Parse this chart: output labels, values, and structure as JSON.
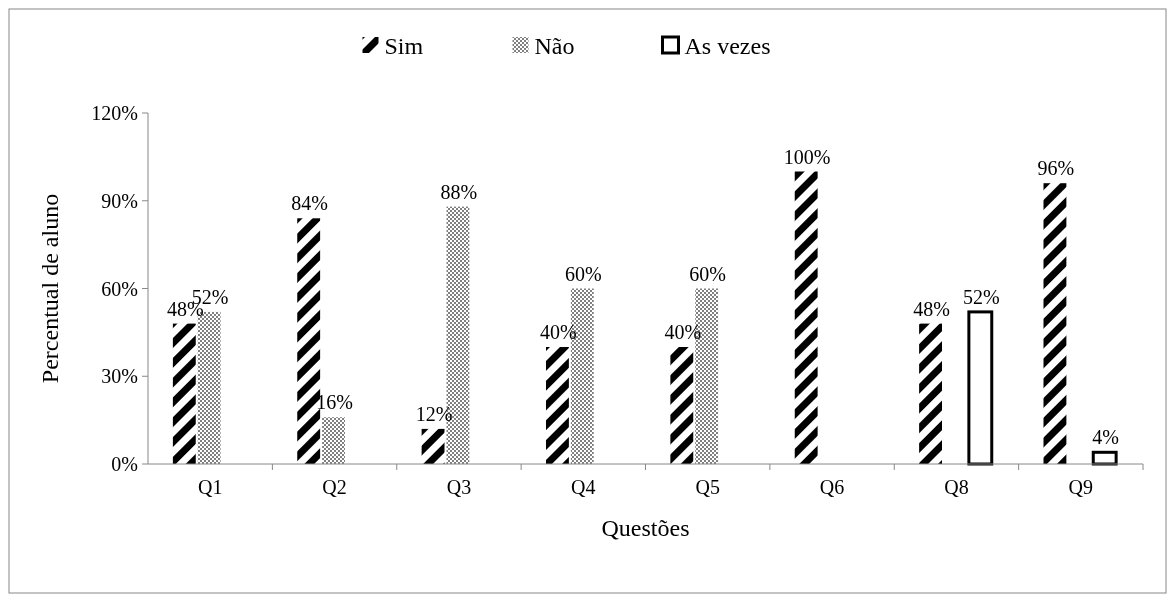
{
  "chart_data": {
    "type": "bar",
    "xlabel": "Questões",
    "ylabel": "Percentual de aluno",
    "categories": [
      "Q1",
      "Q2",
      "Q3",
      "Q4",
      "Q5",
      "Q6",
      "Q8",
      "Q9"
    ],
    "series": [
      {
        "name": "Sim",
        "color": "#000000",
        "values": [
          48,
          84,
          12,
          40,
          40,
          100,
          48,
          96
        ],
        "value_labels": [
          "48%",
          "84%",
          "12%",
          "40%",
          "40%",
          "100%",
          "48%",
          "96%"
        ]
      },
      {
        "name": "Não",
        "color": "#808080",
        "values": [
          52,
          16,
          88,
          60,
          60,
          null,
          null,
          null
        ],
        "value_labels": [
          "52%",
          "16%",
          "88%",
          "60%",
          "60%",
          null,
          null,
          null
        ]
      },
      {
        "name": "As vezes",
        "color": "#ffffff",
        "values": [
          null,
          null,
          null,
          null,
          null,
          null,
          52,
          4
        ],
        "value_labels": [
          null,
          null,
          null,
          null,
          null,
          null,
          "52%",
          "4%"
        ]
      }
    ],
    "ylim": [
      0,
      120
    ],
    "yticks": [
      {
        "value": 0,
        "label": "0%"
      },
      {
        "value": 30,
        "label": "30%"
      },
      {
        "value": 60,
        "label": "60%"
      },
      {
        "value": 90,
        "label": "90%"
      },
      {
        "value": 120,
        "label": "120%"
      }
    ],
    "grid": false,
    "legend": "top"
  }
}
